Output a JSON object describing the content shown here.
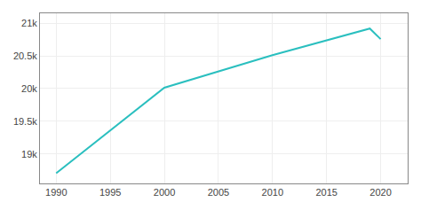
{
  "chart_data": {
    "type": "line",
    "x": [
      1990,
      2000,
      2010,
      2019,
      2020
    ],
    "values": [
      18707,
      20013,
      20510,
      20917,
      20756
    ],
    "color": "#2abfbf",
    "xlim": [
      1988.5,
      2022.5
    ],
    "ylim": [
      18550,
      21150
    ],
    "xticks": [
      1990,
      1995,
      2000,
      2005,
      2010,
      2015,
      2020
    ],
    "yticks": [
      {
        "value": 19000,
        "label": "19k"
      },
      {
        "value": 19500,
        "label": "19.5k"
      },
      {
        "value": 20000,
        "label": "20k"
      },
      {
        "value": 20500,
        "label": "20.5k"
      },
      {
        "value": 21000,
        "label": "21k"
      }
    ],
    "grid": true
  }
}
